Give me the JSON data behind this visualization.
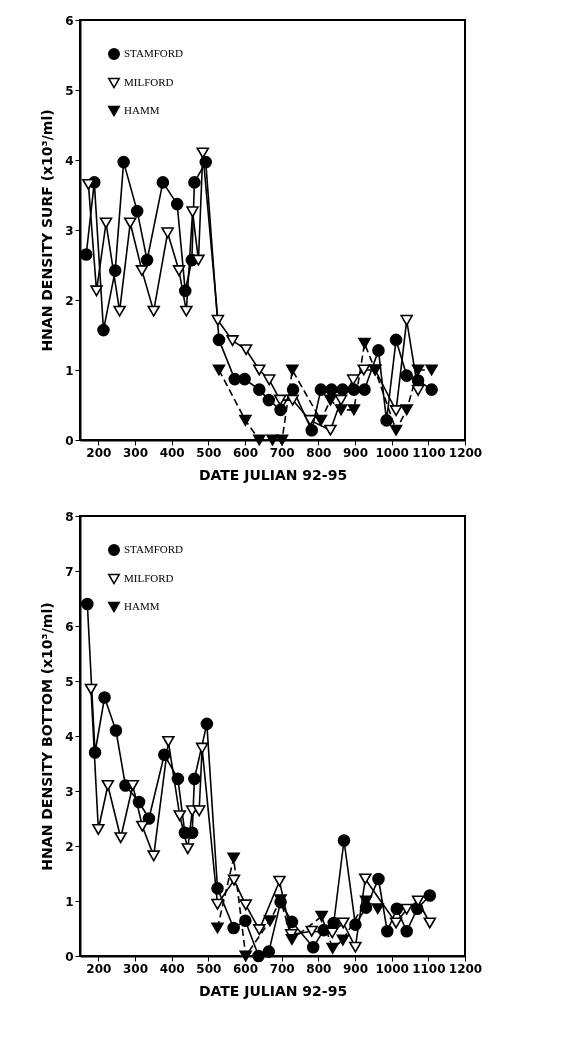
{
  "chart_data": [
    {
      "type": "line",
      "xlabel": "DATE JULIAN 92-95",
      "ylabel": "HNAN DENSITY SURF (x10³/ml)",
      "xlim": [
        150,
        1200
      ],
      "xticks": [
        200,
        300,
        400,
        500,
        600,
        700,
        800,
        900,
        1000,
        1100,
        1200
      ],
      "ylim": [
        0,
        6
      ],
      "yticks": [
        0,
        1,
        2,
        3,
        4,
        5,
        6
      ],
      "legend": "top left",
      "series": [
        {
          "name": "STAMFORD",
          "color": "#000000",
          "marker": "circle",
          "line_style": "solid",
          "x": [
            167,
            189,
            214,
            246,
            269,
            306,
            333,
            376,
            415,
            437,
            455,
            462,
            493,
            529,
            572,
            599,
            639,
            665,
            697,
            731,
            782,
            807,
            836,
            866,
            897,
            926,
            964,
            986,
            1012,
            1041,
            1072,
            1109
          ],
          "values": [
            2.65,
            3.68,
            1.57,
            2.42,
            3.97,
            3.27,
            2.57,
            3.68,
            3.37,
            2.13,
            2.57,
            3.68,
            3.97,
            1.43,
            0.87,
            0.87,
            0.72,
            0.57,
            0.43,
            0.72,
            0.14,
            0.72,
            0.72,
            0.72,
            0.72,
            0.72,
            1.28,
            0.28,
            1.43,
            0.92,
            0.85,
            0.72
          ]
        },
        {
          "name": "MILFORD",
          "color": "#000000",
          "marker": "triangle-open",
          "line_style": "solid",
          "x": [
            173,
            195,
            221,
            258,
            287,
            319,
            351,
            389,
            420,
            440,
            457,
            473,
            485,
            526,
            566,
            603,
            639,
            666,
            696,
            730,
            778,
            833,
            862,
            895,
            924,
            955,
            1012,
            1041,
            1072
          ],
          "values": [
            3.65,
            2.13,
            3.1,
            1.84,
            3.1,
            2.42,
            1.84,
            2.96,
            2.42,
            1.84,
            3.26,
            2.57,
            4.1,
            1.71,
            1.42,
            1.29,
            1.0,
            0.86,
            0.57,
            0.57,
            0.28,
            0.14,
            0.57,
            0.86,
            1.0,
            1.0,
            0.42,
            1.71,
            0.71
          ]
        },
        {
          "name": "HAMM",
          "color": "#000000",
          "marker": "triangle",
          "line_style": "dashed",
          "x": [
            529,
            601,
            639,
            675,
            701,
            729,
            807,
            833,
            862,
            897,
            926,
            955,
            1012,
            1041,
            1072,
            1109
          ],
          "values": [
            1.0,
            0.28,
            0,
            0,
            0,
            1.0,
            0.28,
            0.57,
            0.43,
            0.43,
            1.38,
            1.0,
            0.14,
            0.43,
            1.0,
            1.0
          ]
        }
      ]
    },
    {
      "type": "line",
      "xlabel": "DATE JULIAN 92-95",
      "ylabel": "HNAN DENSITY BOTTOM (x10³/ml)",
      "xlim": [
        150,
        1200
      ],
      "xticks": [
        200,
        300,
        400,
        500,
        600,
        700,
        800,
        900,
        1000,
        1100,
        1200
      ],
      "ylim": [
        0,
        8
      ],
      "yticks": [
        0,
        1,
        2,
        3,
        4,
        5,
        6,
        7,
        8
      ],
      "legend": "top left",
      "series": [
        {
          "name": "STAMFORD",
          "color": "#000000",
          "marker": "circle",
          "line_style": "solid",
          "x": [
            170,
            191,
            217,
            248,
            274,
            311,
            338,
            380,
            417,
            436,
            456,
            462,
            496,
            525,
            569,
            601,
            637,
            665,
            697,
            728,
            786,
            815,
            842,
            870,
            901,
            930,
            964,
            988,
            1014,
            1041,
            1070,
            1104
          ],
          "values": [
            6.4,
            3.7,
            4.7,
            4.1,
            3.1,
            2.8,
            2.5,
            3.66,
            3.22,
            2.24,
            2.24,
            3.22,
            4.22,
            1.23,
            0.51,
            0.64,
            0,
            0.08,
            0.98,
            0.62,
            0.16,
            0.47,
            0.6,
            2.1,
            0.57,
            0.88,
            1.4,
            0.45,
            0.86,
            0.45,
            0.86,
            1.1
          ]
        },
        {
          "name": "MILFORD",
          "color": "#000000",
          "marker": "triangle-open",
          "line_style": "solid",
          "x": [
            180,
            200,
            226,
            261,
            294,
            320,
            351,
            391,
            422,
            444,
            456,
            475,
            483,
            525,
            570,
            602,
            639,
            694,
            726,
            782,
            838,
            868,
            901,
            928,
            1012,
            1041,
            1072,
            1104
          ],
          "values": [
            4.85,
            2.3,
            3.1,
            2.15,
            3.1,
            2.36,
            1.82,
            3.9,
            2.55,
            1.95,
            2.64,
            2.64,
            3.78,
            0.94,
            1.38,
            0.93,
            0.48,
            1.36,
            0.39,
            0.45,
            0.42,
            0.6,
            0.16,
            1.4,
            0.6,
            0.85,
            1.0,
            0.6
          ]
        },
        {
          "name": "HAMM",
          "color": "#000000",
          "marker": "triangle",
          "line_style": "dashed",
          "x": [
            525,
            569,
            602,
            668,
            697,
            728,
            809,
            839,
            867,
            930,
            962
          ],
          "values": [
            0.51,
            1.78,
            0,
            0.64,
            1.02,
            0.3,
            0.72,
            0.14,
            0.29,
            1.0,
            0.86
          ]
        }
      ]
    }
  ]
}
